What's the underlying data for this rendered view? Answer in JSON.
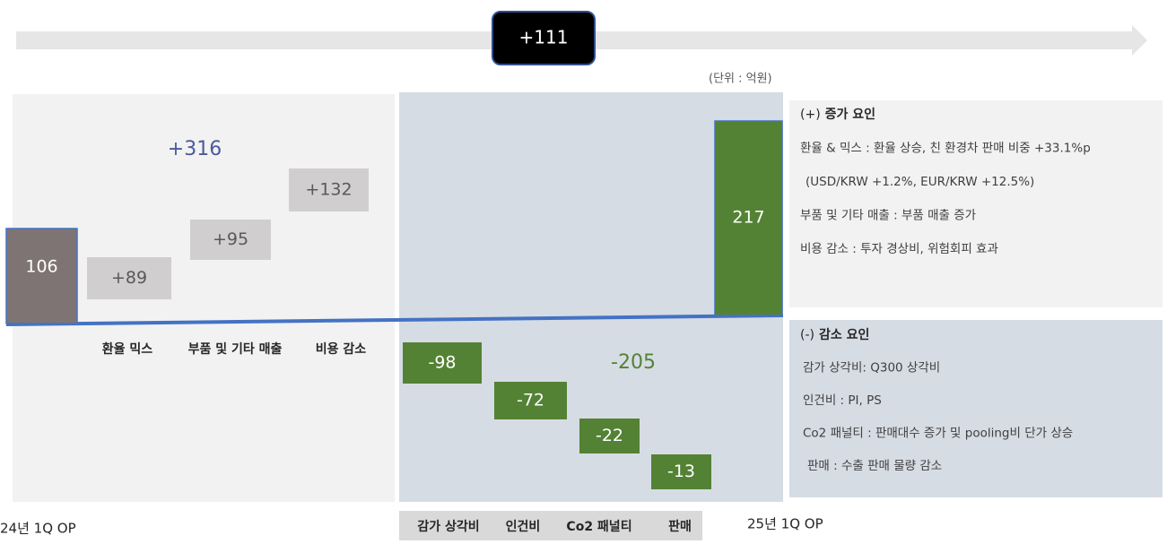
{
  "chart_data": {
    "type": "waterfall",
    "banner": {
      "value": 111,
      "label": "+111"
    },
    "unit_note": "(단위 : 억원)",
    "categories": [
      "24년 1Q OP",
      "환율 믹스",
      "부품 및 기타 매출",
      "비용 감소",
      "감가 상각비",
      "인건비",
      "Co2 패널티",
      "판매",
      "25년 1Q OP"
    ],
    "values": [
      106,
      89,
      95,
      132,
      -98,
      -72,
      -22,
      -13,
      217
    ],
    "value_labels": [
      "106",
      "+89",
      "+95",
      "+132",
      "-98",
      "-72",
      "-22",
      "-13",
      "217"
    ],
    "group_totals": [
      {
        "value": 316,
        "label": "+316"
      },
      {
        "value": -205,
        "label": "-205"
      }
    ],
    "colors": {
      "total": "#7f7474",
      "increase": "#d0cece",
      "decrease": "#548235",
      "end": "#548235",
      "baseline": "#4472c4"
    }
  },
  "panels": {
    "increase": {
      "prefix": "(+)",
      "heading": "증가 요인",
      "items": [
        "환율 & 믹스 : 환율 상승, 친 환경차 판매 비중 +33.1%p",
        "(USD/KRW +1.2%, EUR/KRW +12.5%)",
        "부품 및 기타 매출 : 부품 매출 증가",
        "비용 감소 : 투자 경상비, 위험회피 효과"
      ]
    },
    "decrease": {
      "prefix": "(-)",
      "heading": "감소 요인",
      "items": [
        "감가 상각비:  Q300 상각비",
        "인건비 : PI, PS",
        "Co2 패널티 : 판매대수 증가 및 pooling비 단가 상승",
        "판매 : 수출 판매 물량 감소"
      ]
    }
  }
}
